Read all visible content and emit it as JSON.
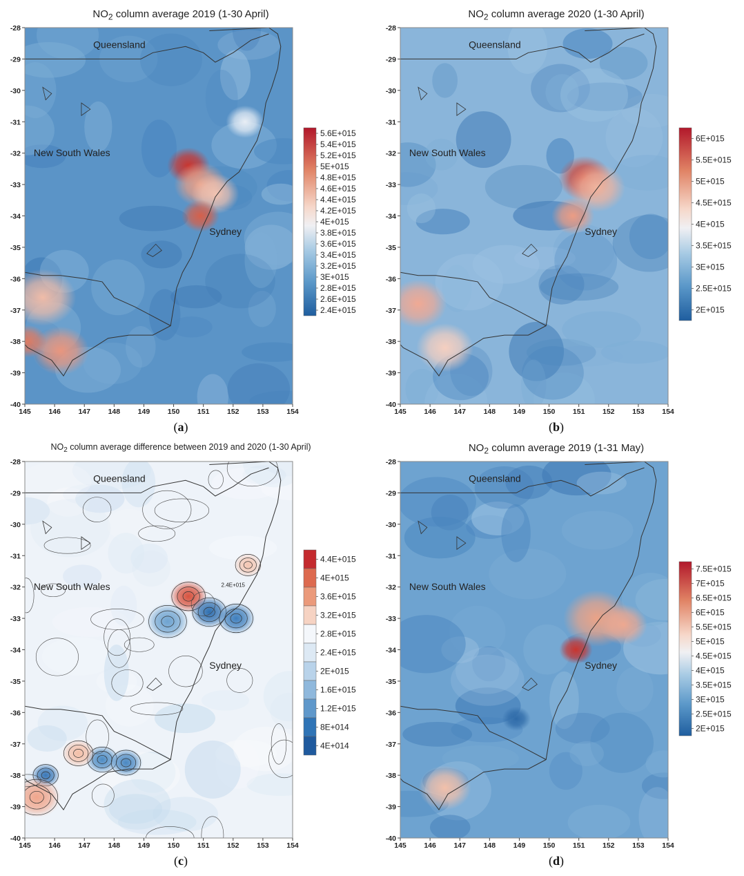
{
  "panels": [
    {
      "id": "a",
      "title_pre": "NO",
      "title_sub": "2",
      "title_post": " column average 2019 (1-30 April)",
      "letter": "a",
      "type": "heatmap",
      "colorbar": [
        "5.6E+015",
        "5.4E+015",
        "5.2E+015",
        "5E+015",
        "4.8E+015",
        "4.6E+015",
        "4.4E+015",
        "4.2E+015",
        "4E+015",
        "3.8E+015",
        "3.6E+015",
        "3.4E+015",
        "3.2E+015",
        "3E+015",
        "2.8E+015",
        "2.6E+015",
        "2.4E+015"
      ],
      "base_color": "#5b94c7",
      "hotspots": [
        {
          "lon": 150.5,
          "lat": -32.4,
          "r": 0.45,
          "color": "#c9352f"
        },
        {
          "lon": 150.9,
          "lat": -33.0,
          "r": 0.55,
          "color": "#e9a088"
        },
        {
          "lon": 151.4,
          "lat": -33.3,
          "r": 0.5,
          "color": "#f1c2b0"
        },
        {
          "lon": 150.9,
          "lat": -34.0,
          "r": 0.4,
          "color": "#d6604a"
        },
        {
          "lon": 145.6,
          "lat": -36.6,
          "r": 0.7,
          "color": "#f0bca8"
        },
        {
          "lon": 146.2,
          "lat": -38.3,
          "r": 0.6,
          "color": "#e9967e"
        },
        {
          "lon": 145.1,
          "lat": -38.0,
          "r": 0.4,
          "color": "#de7b62"
        },
        {
          "lon": 152.4,
          "lat": -31.0,
          "r": 0.4,
          "color": "#e8eef5"
        }
      ]
    },
    {
      "id": "b",
      "title_pre": "NO",
      "title_sub": "2",
      "title_post": " column average 2020 (1-30 April)",
      "letter": "b",
      "type": "heatmap",
      "colorbar": [
        "6E+015",
        "5.5E+015",
        "5E+015",
        "4.5E+015",
        "4E+015",
        "3.5E+015",
        "3E+015",
        "2.5E+015",
        "2E+015"
      ],
      "base_color": "#8ab5da",
      "hotspots": [
        {
          "lon": 151.2,
          "lat": -32.8,
          "r": 0.55,
          "color": "#d24a3b"
        },
        {
          "lon": 151.6,
          "lat": -33.1,
          "r": 0.6,
          "color": "#f0b49e"
        },
        {
          "lon": 150.8,
          "lat": -34.0,
          "r": 0.45,
          "color": "#ec9c84"
        },
        {
          "lon": 145.6,
          "lat": -36.8,
          "r": 0.6,
          "color": "#f0a994"
        },
        {
          "lon": 146.5,
          "lat": -38.2,
          "r": 0.6,
          "color": "#f5cfc0"
        }
      ]
    },
    {
      "id": "c",
      "title_pre": "NO",
      "title_sub": "2",
      "title_post": " column average difference between 2019 and 2020 (1-30 April)",
      "letter": "c",
      "type": "contour",
      "colorbar": [
        "4.4E+015",
        "4E+015",
        "3.6E+015",
        "3.2E+015",
        "2.8E+015",
        "2.4E+015",
        "2E+015",
        "1.6E+015",
        "1.2E+015",
        "8E+014",
        "4E+014"
      ],
      "contour_label": "2.4E+015",
      "base_color": "#eef3f9",
      "hotspots": [
        {
          "lon": 150.5,
          "lat": -32.3,
          "r": 0.4,
          "color": "#d8533f"
        },
        {
          "lon": 151.2,
          "lat": -32.8,
          "r": 0.4,
          "color": "#2f6fb0"
        },
        {
          "lon": 152.1,
          "lat": -33.0,
          "r": 0.4,
          "color": "#3f7fbd"
        },
        {
          "lon": 149.8,
          "lat": -33.1,
          "r": 0.45,
          "color": "#6ea3d0"
        },
        {
          "lon": 147.6,
          "lat": -37.5,
          "r": 0.35,
          "color": "#4e8cc4"
        },
        {
          "lon": 148.4,
          "lat": -37.6,
          "r": 0.35,
          "color": "#4a88c2"
        },
        {
          "lon": 145.7,
          "lat": -38.0,
          "r": 0.3,
          "color": "#3a78b8"
        },
        {
          "lon": 145.4,
          "lat": -38.7,
          "r": 0.5,
          "color": "#f0a68c"
        },
        {
          "lon": 146.8,
          "lat": -37.3,
          "r": 0.35,
          "color": "#f4bfa8"
        },
        {
          "lon": 152.5,
          "lat": -31.3,
          "r": 0.3,
          "color": "#f4c6b2"
        }
      ]
    },
    {
      "id": "d",
      "title_pre": "NO",
      "title_sub": "2",
      "title_post": " column average 2019 (1-31 May)",
      "letter": "d",
      "type": "heatmap",
      "colorbar": [
        "7.5E+015",
        "7E+015",
        "6.5E+015",
        "6E+015",
        "5.5E+015",
        "5E+015",
        "4.5E+015",
        "4E+015",
        "3.5E+015",
        "3E+015",
        "2.5E+015",
        "2E+015"
      ],
      "base_color": "#6ea3d0",
      "hotspots": [
        {
          "lon": 151.6,
          "lat": -33.0,
          "r": 0.7,
          "color": "#eba387"
        },
        {
          "lon": 152.5,
          "lat": -33.2,
          "r": 0.5,
          "color": "#eea890"
        },
        {
          "lon": 150.9,
          "lat": -34.0,
          "r": 0.35,
          "color": "#c9352f"
        },
        {
          "lon": 146.5,
          "lat": -38.4,
          "r": 0.55,
          "color": "#f2c0aa"
        },
        {
          "lon": 148.9,
          "lat": -36.2,
          "r": 0.3,
          "color": "#2e6aa8"
        }
      ]
    }
  ],
  "axes": {
    "x_ticks": [
      "145",
      "146",
      "147",
      "148",
      "149",
      "150",
      "151",
      "152",
      "153",
      "154"
    ],
    "y_ticks": [
      "-28",
      "-29",
      "-30",
      "-31",
      "-32",
      "-33",
      "-34",
      "-35",
      "-36",
      "-37",
      "-38",
      "-39",
      "-40"
    ],
    "x_range": [
      145,
      154
    ],
    "y_range": [
      -40,
      -28
    ]
  },
  "places": {
    "queensland": "Queensland",
    "nsw": "New South Wales",
    "sydney": "Sydney"
  }
}
